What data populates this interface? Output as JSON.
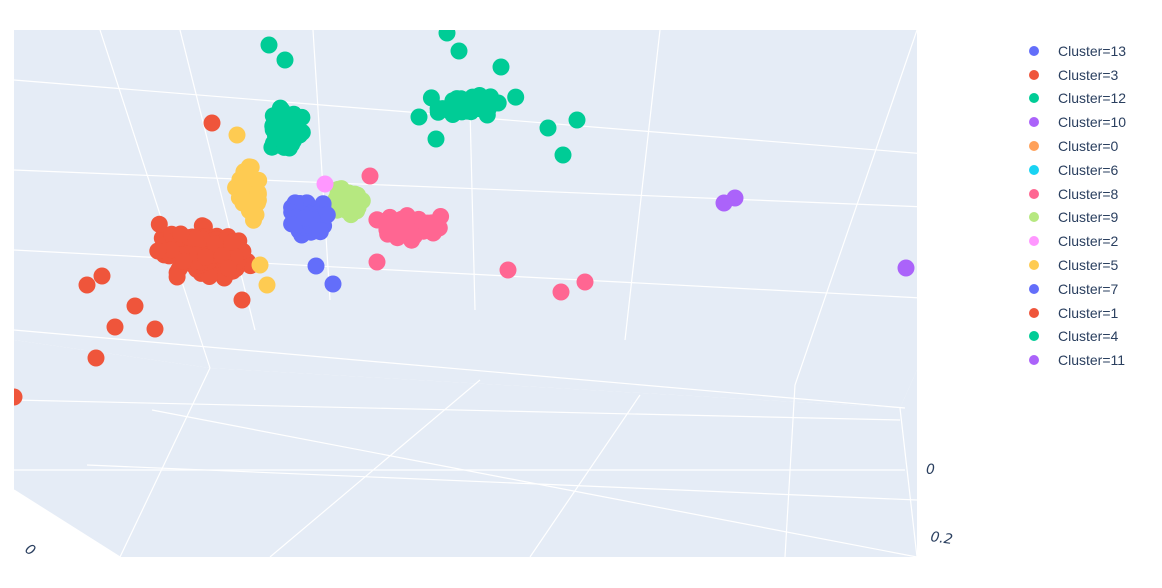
{
  "chart_data": {
    "type": "scatter3d",
    "title": "",
    "axes": {
      "tick_labels_visible": [
        "0",
        "0.2",
        "0"
      ]
    },
    "legend": {
      "placement": "right",
      "entries": [
        {
          "name": "Cluster=13",
          "color": "#636efa"
        },
        {
          "name": "Cluster=3",
          "color": "#ef553b"
        },
        {
          "name": "Cluster=12",
          "color": "#00cc96"
        },
        {
          "name": "Cluster=10",
          "color": "#ab63fa"
        },
        {
          "name": "Cluster=0",
          "color": "#ffa15a"
        },
        {
          "name": "Cluster=6",
          "color": "#19d3f3"
        },
        {
          "name": "Cluster=8",
          "color": "#ff6692"
        },
        {
          "name": "Cluster=9",
          "color": "#b6e880"
        },
        {
          "name": "Cluster=2",
          "color": "#ff97ff"
        },
        {
          "name": "Cluster=5",
          "color": "#fecb52"
        },
        {
          "name": "Cluster=7",
          "color": "#636efa"
        },
        {
          "name": "Cluster=1",
          "color": "#ef553b"
        },
        {
          "name": "Cluster=4",
          "color": "#00cc96"
        },
        {
          "name": "Cluster=11",
          "color": "#ab63fa"
        }
      ]
    },
    "scene": {
      "background": "#e5ecf6",
      "grid_color": "#ffffff",
      "grid": true
    }
  }
}
